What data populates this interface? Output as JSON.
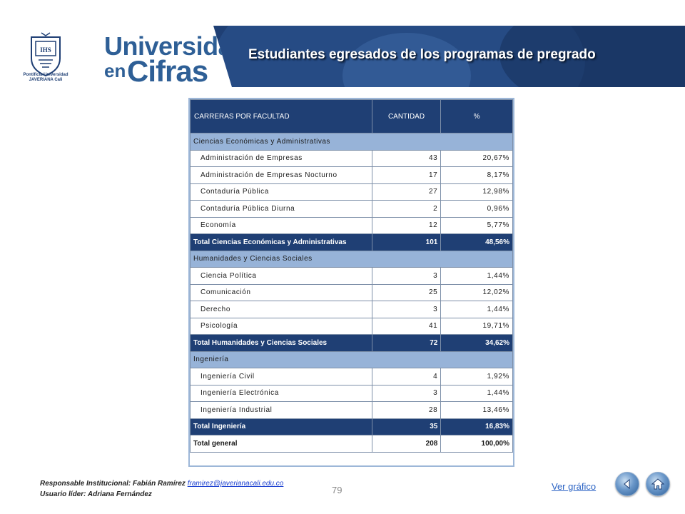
{
  "header": {
    "brand_line1": "Universidad",
    "brand_en": "en",
    "brand_cifras": "Cifras",
    "crest_text": "Pontificia Universidad JAVERIANA Cali",
    "title": "Estudiantes egresados de los programas de pregrado",
    "colors": {
      "banner": "#1f3f74",
      "brand": "#2e5f96"
    }
  },
  "table": {
    "headers": [
      "CARRERAS POR FACULTAD",
      "CANTIDAD",
      "%"
    ],
    "groups": [
      {
        "name": "Ciencias Económicas y Administrativas",
        "rows": [
          {
            "name": "Administración de Empresas",
            "cantidad": "43",
            "pct": "20,67%"
          },
          {
            "name": "Administración de Empresas Nocturno",
            "cantidad": "17",
            "pct": "8,17%"
          },
          {
            "name": "Contaduría Pública",
            "cantidad": "27",
            "pct": "12,98%"
          },
          {
            "name": "Contaduría Pública Diurna",
            "cantidad": "2",
            "pct": "0,96%"
          },
          {
            "name": "Economía",
            "cantidad": "12",
            "pct": "5,77%"
          }
        ],
        "total": {
          "name": "Total Ciencias Económicas y Administrativas",
          "cantidad": "101",
          "pct": "48,56%"
        }
      },
      {
        "name": "Humanidades y Ciencias Sociales",
        "rows": [
          {
            "name": "Ciencia Política",
            "cantidad": "3",
            "pct": "1,44%"
          },
          {
            "name": "Comunicación",
            "cantidad": "25",
            "pct": "12,02%"
          },
          {
            "name": "Derecho",
            "cantidad": "3",
            "pct": "1,44%"
          },
          {
            "name": "Psicología",
            "cantidad": "41",
            "pct": "19,71%"
          }
        ],
        "total": {
          "name": "Total Humanidades y Ciencias Sociales",
          "cantidad": "72",
          "pct": "34,62%"
        }
      },
      {
        "name": "Ingeniería",
        "rows": [
          {
            "name": "Ingeniería Civil",
            "cantidad": "4",
            "pct": "1,92%"
          },
          {
            "name": "Ingeniería Electrónica",
            "cantidad": "3",
            "pct": "1,44%"
          },
          {
            "name": "Ingeniería Industrial",
            "cantidad": "28",
            "pct": "13,46%"
          }
        ],
        "total": {
          "name": "Total Ingeniería",
          "cantidad": "35",
          "pct": "16,83%"
        }
      }
    ],
    "grand_total": {
      "name": "Total general",
      "cantidad": "208",
      "pct": "100,00%"
    }
  },
  "footer": {
    "responsable_label": "Responsable Institucional: Fabián Ramírez",
    "responsable_email": "framirez@javerianacali.edu.co",
    "usuario_label": "Usuario líder: Adriana Fernández",
    "page_number": "79",
    "ver_grafico": "Ver gráfico",
    "icons": [
      "back-arrow-icon",
      "home-icon"
    ]
  }
}
